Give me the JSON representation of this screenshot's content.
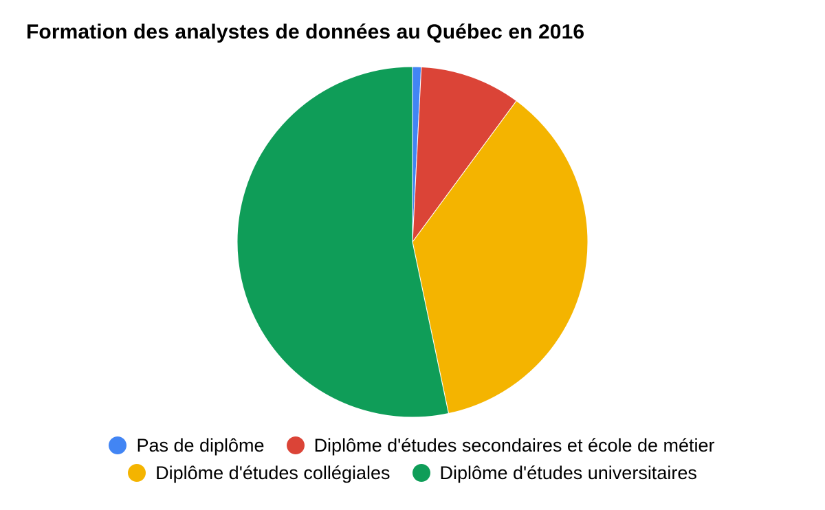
{
  "chart_data": {
    "type": "pie",
    "title": "Formation des analystes de données au Québec en 2016",
    "start_angle_deg": 0,
    "direction": "clockwise",
    "legend_position": "bottom",
    "categories": [
      "Pas de diplôme",
      "Diplôme d'études secondaires et école de métier",
      "Diplôme d'études collégiales",
      "Diplôme d'études universitaires"
    ],
    "values": [
      0.8,
      9.3,
      36.6,
      53.3
    ],
    "colors": [
      "#4285f4",
      "#db4437",
      "#f4b400",
      "#0f9d58"
    ]
  }
}
